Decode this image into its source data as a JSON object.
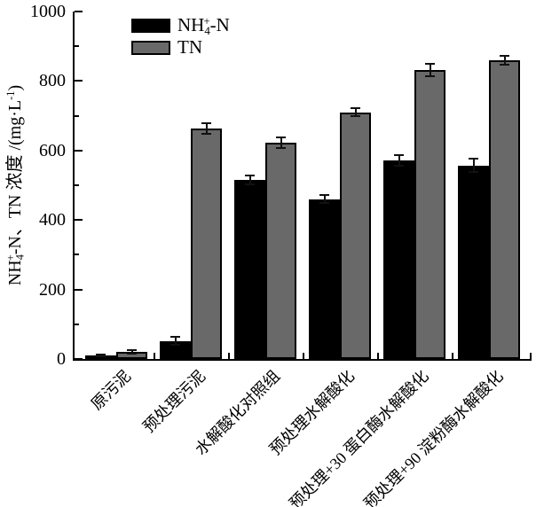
{
  "figure": {
    "background": "#ffffff",
    "axis_color": "#000000",
    "error_bar_color": "#111111"
  },
  "chart_data": {
    "type": "bar",
    "title": "",
    "xlabel": "",
    "ylabel": "NH4+-N、TN 浓度 /(mg·L-1)",
    "ylabel_parts": [
      {
        "t": "NH"
      },
      {
        "t": "4",
        "v": "sub"
      },
      {
        "t": "+",
        "v": "sup-over"
      },
      {
        "t": "-N、TN 浓度 /(mg·L"
      },
      {
        "t": "-1",
        "v": "sup"
      },
      {
        "t": ")"
      }
    ],
    "ylim": [
      0,
      1000
    ],
    "y_major_step": 200,
    "y_minor_step": 100,
    "y_tick_labels": [
      "0",
      "200",
      "400",
      "600",
      "800",
      "1000"
    ],
    "grid": false,
    "legend_position": "top-left-inside",
    "categories": [
      "原污泥",
      "预处理污泥",
      "水解酸化对照组",
      "预处理水解酸化",
      "预处理+30 蛋白酶水解酸化",
      "预处理+90 淀粉酶水解酸化"
    ],
    "series": [
      {
        "key": "nh4n",
        "name": "NH4+-N",
        "name_parts": [
          {
            "t": "NH"
          },
          {
            "t": "4",
            "v": "sub"
          },
          {
            "t": "+",
            "v": "sup-over"
          },
          {
            "t": "-N"
          }
        ],
        "color": "#000000",
        "values": [
          10,
          52,
          515,
          460,
          572,
          557
        ],
        "errors": [
          3,
          12,
          13,
          12,
          15,
          20
        ]
      },
      {
        "key": "tn",
        "name": "TN",
        "name_parts": [
          {
            "t": "TN"
          }
        ],
        "color": "#696969",
        "values": [
          20,
          663,
          622,
          710,
          832,
          860
        ],
        "errors": [
          5,
          15,
          15,
          12,
          18,
          13
        ]
      }
    ]
  }
}
